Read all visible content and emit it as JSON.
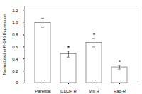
{
  "chart_data": {
    "type": "bar",
    "categories": [
      "Parental",
      "CDDP R",
      "Vin R",
      "Rad-R"
    ],
    "values": [
      1.0,
      0.48,
      0.67,
      0.26
    ],
    "errors": [
      0.08,
      0.05,
      0.07,
      0.03
    ],
    "color": "#ffffff",
    "ylabel": "Normalized miR-145 Expression",
    "ylim": [
      0,
      1.28
    ],
    "yticks": [
      0,
      0.2,
      0.4,
      0.6,
      0.8,
      {
        "value": 1.0,
        "label": "1.0"
      },
      1.2
    ],
    "annotations": [
      {
        "category": "CDDP R",
        "text": "*"
      },
      {
        "category": "Vin R",
        "text": "*"
      },
      {
        "category": "Rad-R",
        "text": "*"
      }
    ],
    "grid": false
  }
}
